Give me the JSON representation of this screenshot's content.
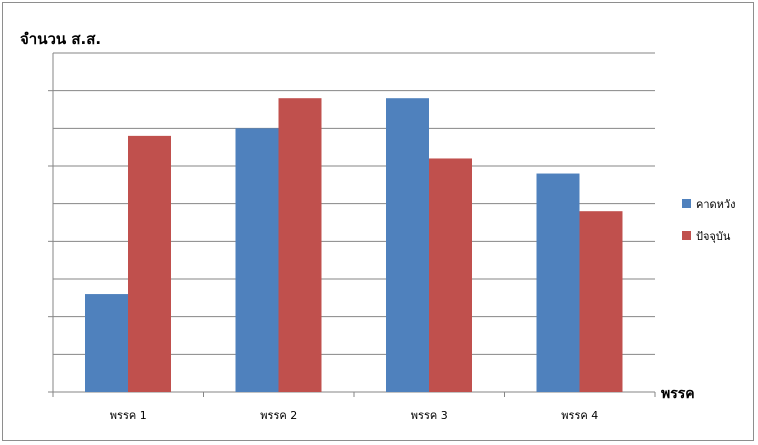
{
  "chart_data": {
    "type": "bar",
    "title": "",
    "ylabel": "จำนวน ส.ส.",
    "xlabel": "พรรค",
    "categories": [
      "พรรค 1",
      "พรรค 2",
      "พรรค 3",
      "พรรค 4"
    ],
    "ylim": [
      0,
      90
    ],
    "grid": true,
    "legend_position": "right",
    "series": [
      {
        "name": "คาดหวัง",
        "values": [
          26,
          70,
          78,
          58
        ],
        "color": "#4f81bd"
      },
      {
        "name": "ปัจจุบัน",
        "values": [
          68,
          78,
          62,
          48
        ],
        "color": "#c0504d"
      }
    ]
  }
}
